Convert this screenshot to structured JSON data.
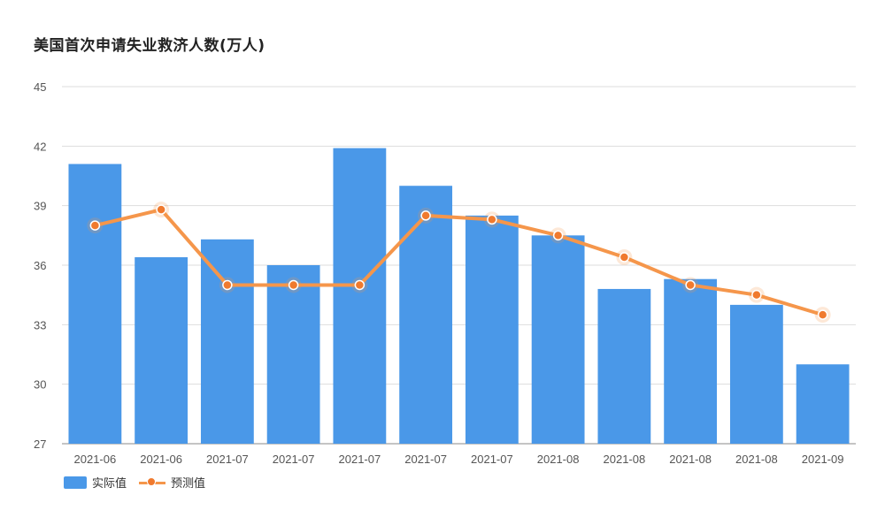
{
  "title": "美国首次申请失业救济人数(万人)",
  "colors": {
    "bar": "#4A98E8",
    "line": "#F5964B",
    "dot": "#F07A2E",
    "grid": "#DDDDDD",
    "axis": "#888888"
  },
  "legend": {
    "bar_label": "实际值",
    "line_label": "预测值"
  },
  "chart_data": {
    "type": "bar",
    "title": "美国首次申请失业救济人数(万人)",
    "xlabel": "",
    "ylabel": "",
    "ylim": [
      27,
      45
    ],
    "yticks": [
      27,
      30,
      33,
      36,
      39,
      42,
      45
    ],
    "grid": true,
    "legend_position": "bottom-left",
    "categories": [
      "2021-06",
      "2021-06",
      "2021-07",
      "2021-07",
      "2021-07",
      "2021-07",
      "2021-07",
      "2021-08",
      "2021-08",
      "2021-08",
      "2021-08",
      "2021-09"
    ],
    "series": [
      {
        "name": "实际值",
        "type": "bar",
        "values": [
          41.1,
          36.4,
          37.3,
          36.0,
          41.9,
          40.0,
          38.5,
          37.5,
          34.8,
          35.3,
          34.0,
          31.0
        ]
      },
      {
        "name": "预测值",
        "type": "line",
        "values": [
          38.0,
          38.8,
          35.0,
          35.0,
          35.0,
          38.5,
          38.3,
          37.5,
          36.4,
          35.0,
          34.5,
          33.5
        ]
      }
    ]
  }
}
